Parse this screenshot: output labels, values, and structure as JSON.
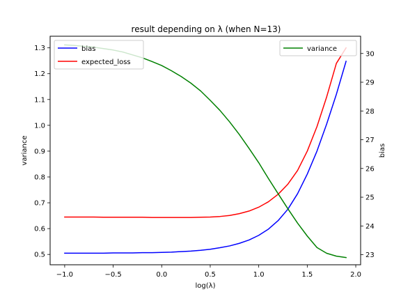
{
  "chart_data": {
    "type": "line",
    "title": "result depending on λ (when N=13)",
    "xlabel": "log(λ)",
    "ylabel_left": "variance",
    "ylabel_right": "bias",
    "xlim": [
      -1.15,
      2.05
    ],
    "ylim_left": [
      0.46,
      1.345
    ],
    "ylim_right": [
      22.65,
      30.6
    ],
    "x_ticks": [
      "−1.0",
      "−0.5",
      "0.0",
      "0.5",
      "1.0",
      "1.5",
      "2.0"
    ],
    "x_tick_values": [
      -1.0,
      -0.5,
      0.0,
      0.5,
      1.0,
      1.5,
      2.0
    ],
    "y_left_ticks": [
      "0.5",
      "0.6",
      "0.7",
      "0.8",
      "0.9",
      "1.0",
      "1.1",
      "1.2",
      "1.3"
    ],
    "y_left_tick_values": [
      0.5,
      0.6,
      0.7,
      0.8,
      0.9,
      1.0,
      1.1,
      1.2,
      1.3
    ],
    "y_right_ticks": [
      "23",
      "24",
      "25",
      "26",
      "27",
      "28",
      "29",
      "30"
    ],
    "y_right_tick_values": [
      23,
      24,
      25,
      26,
      27,
      28,
      29,
      30
    ],
    "x": [
      -1.0,
      -0.9,
      -0.8,
      -0.7,
      -0.6,
      -0.5,
      -0.4,
      -0.3,
      -0.2,
      -0.1,
      0.0,
      0.1,
      0.2,
      0.3,
      0.4,
      0.5,
      0.6,
      0.7,
      0.8,
      0.9,
      1.0,
      1.1,
      1.2,
      1.3,
      1.4,
      1.5,
      1.6,
      1.7,
      1.8,
      1.9
    ],
    "series": [
      {
        "name": "bias",
        "color": "#0000ff",
        "axis": "left",
        "values": [
          0.505,
          0.505,
          0.505,
          0.505,
          0.505,
          0.506,
          0.506,
          0.506,
          0.507,
          0.507,
          0.508,
          0.509,
          0.511,
          0.513,
          0.516,
          0.52,
          0.526,
          0.533,
          0.543,
          0.556,
          0.574,
          0.598,
          0.631,
          0.675,
          0.735,
          0.811,
          0.9,
          1.005,
          1.12,
          1.248
        ]
      },
      {
        "name": "expected_loss",
        "color": "#ff0000",
        "axis": "left",
        "values": [
          0.645,
          0.645,
          0.645,
          0.645,
          0.644,
          0.644,
          0.644,
          0.644,
          0.644,
          0.643,
          0.643,
          0.643,
          0.643,
          0.643,
          0.644,
          0.645,
          0.647,
          0.651,
          0.658,
          0.668,
          0.683,
          0.704,
          0.733,
          0.772,
          0.825,
          0.9,
          0.995,
          1.11,
          1.24,
          1.3
        ]
      },
      {
        "name": "variance",
        "color": "#008000",
        "axis": "right",
        "values": [
          30.3,
          30.28,
          30.25,
          30.22,
          30.17,
          30.12,
          30.05,
          29.95,
          29.85,
          29.72,
          29.58,
          29.4,
          29.2,
          28.97,
          28.7,
          28.37,
          28.02,
          27.62,
          27.18,
          26.7,
          26.2,
          25.65,
          25.12,
          24.6,
          24.1,
          23.65,
          23.25,
          23.05,
          22.95,
          22.9
        ]
      }
    ],
    "legend_left": {
      "position": "upper-left",
      "entries": [
        "bias",
        "expected_loss"
      ]
    },
    "legend_right": {
      "position": "upper-right",
      "entries": [
        "variance"
      ]
    },
    "grid": false
  }
}
